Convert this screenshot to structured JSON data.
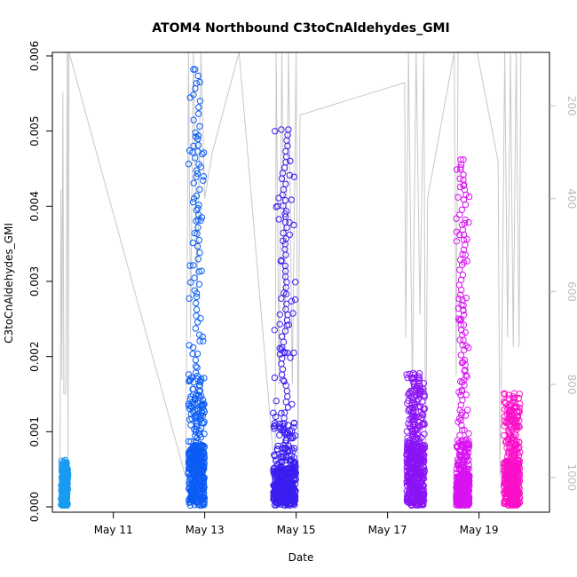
{
  "chart_data": {
    "type": "scatter",
    "title": "ATOM4 Northbound C3toCnAldehydes_GMI",
    "xlabel": "Date",
    "ylabel": "C3toCnAldehydes_GMI",
    "y2label": "",
    "xlim": [
      "2018-05-09T16:00",
      "2018-05-20T13:00"
    ],
    "ylim": [
      0,
      0.006
    ],
    "y2lim_reversed": [
      85,
      1075
    ],
    "x_ticks": [
      {
        "date": "2018-05-11",
        "label": "May 11"
      },
      {
        "date": "2018-05-13",
        "label": "May 13"
      },
      {
        "date": "2018-05-15",
        "label": "May 15"
      },
      {
        "date": "2018-05-17",
        "label": "May 17"
      },
      {
        "date": "2018-05-19",
        "label": "May 19"
      }
    ],
    "y_ticks": [
      "0.000",
      "0.001",
      "0.002",
      "0.003",
      "0.004",
      "0.005",
      "0.006"
    ],
    "y2_ticks": [
      "200",
      "400",
      "600",
      "800",
      "1000"
    ],
    "grid": false,
    "legend": "none",
    "series": [
      {
        "flight_date": "2018-05-09",
        "start": "2018-05-09T21:00",
        "end": "2018-05-09T23:45",
        "color": "#1a9bf0",
        "y_min": 2e-05,
        "y_max": 0.00062,
        "typical": 0.00025
      },
      {
        "flight_date": "2018-05-12",
        "start": "2018-05-12T15:30",
        "end": "2018-05-12T23:55",
        "color": "#0b5cf5",
        "y_min": 2e-05,
        "y_max": 0.00582,
        "typical": 0.0008
      },
      {
        "flight_date": "2018-05-14",
        "start": "2018-05-14T12:00",
        "end": "2018-05-14T23:50",
        "color": "#3a1ef0",
        "y_min": 2e-05,
        "y_max": 0.00502,
        "typical": 0.0005
      },
      {
        "flight_date": "2018-05-17",
        "start": "2018-05-17T10:00",
        "end": "2018-05-17T19:30",
        "color": "#8a14f5",
        "y_min": 2e-05,
        "y_max": 0.00176,
        "typical": 0.0008
      },
      {
        "flight_date": "2018-05-18",
        "start": "2018-05-18T12:00",
        "end": "2018-05-18T19:00",
        "color": "#d813f0",
        "y_min": 2e-05,
        "y_max": 0.00462,
        "typical": 0.0004
      },
      {
        "flight_date": "2018-05-19",
        "start": "2018-05-19T13:00",
        "end": "2018-05-19T21:30",
        "color": "#fb10c8",
        "y_min": 2e-05,
        "y_max": 0.00151,
        "typical": 0.0006
      }
    ],
    "pressure_trace": {
      "color": "#c8c8c8",
      "points": [
        [
          "2018-05-09T20:00",
          1000
        ],
        [
          "2018-05-09T20:30",
          380
        ],
        [
          "2018-05-09T21:00",
          790
        ],
        [
          "2018-05-09T21:30",
          170
        ],
        [
          "2018-05-09T22:00",
          820
        ],
        [
          "2018-05-09T23:00",
          820
        ],
        [
          "2018-05-09T23:30",
          400
        ],
        [
          "2018-05-09T23:50",
          85
        ],
        [
          "2018-05-10T00:00",
          85
        ],
        [
          "2018-05-10T00:10",
          1000
        ],
        [
          "2018-05-10T00:30",
          500
        ],
        [
          "2018-05-10T00:45",
          85
        ],
        [
          "2018-05-12T14:00",
          1000
        ],
        [
          "2018-05-12T14:30",
          700
        ],
        [
          "2018-05-12T15:30",
          85
        ],
        [
          "2018-05-12T16:30",
          700
        ],
        [
          "2018-05-12T18:00",
          85
        ],
        [
          "2018-05-12T20:00",
          600
        ],
        [
          "2018-05-12T22:00",
          85
        ],
        [
          "2018-05-13T00:00",
          400
        ],
        [
          "2018-05-13T04:00",
          300
        ],
        [
          "2018-05-13T18:00",
          85
        ],
        [
          "2018-05-14T13:00",
          1000
        ],
        [
          "2018-05-14T13:30",
          85
        ],
        [
          "2018-05-14T15:00",
          800
        ],
        [
          "2018-05-14T16:30",
          85
        ],
        [
          "2018-05-14T18:00",
          700
        ],
        [
          "2018-05-14T20:00",
          85
        ],
        [
          "2018-05-14T22:00",
          800
        ],
        [
          "2018-05-15T00:00",
          85
        ],
        [
          "2018-05-15T01:00",
          1000
        ],
        [
          "2018-05-15T02:00",
          220
        ],
        [
          "2018-05-17T09:00",
          150
        ],
        [
          "2018-05-17T09:30",
          700
        ],
        [
          "2018-05-17T11:00",
          85
        ],
        [
          "2018-05-17T13:00",
          800
        ],
        [
          "2018-05-17T15:00",
          85
        ],
        [
          "2018-05-17T17:00",
          650
        ],
        [
          "2018-05-17T19:00",
          85
        ],
        [
          "2018-05-17T20:00",
          1000
        ],
        [
          "2018-05-17T21:00",
          400
        ],
        [
          "2018-05-18T11:00",
          85
        ],
        [
          "2018-05-18T12:00",
          780
        ],
        [
          "2018-05-18T13:00",
          85
        ],
        [
          "2018-05-18T17:00",
          85
        ],
        [
          "2018-05-18T19:00",
          85
        ],
        [
          "2018-05-18T23:00",
          85
        ],
        [
          "2018-05-19T10:00",
          320
        ],
        [
          "2018-05-19T11:00",
          1000
        ],
        [
          "2018-05-19T12:00",
          700
        ],
        [
          "2018-05-19T13:30",
          85
        ],
        [
          "2018-05-19T15:00",
          700
        ],
        [
          "2018-05-19T16:30",
          85
        ],
        [
          "2018-05-19T18:00",
          720
        ],
        [
          "2018-05-19T19:30",
          85
        ],
        [
          "2018-05-19T21:00",
          720
        ],
        [
          "2018-05-19T22:00",
          85
        ]
      ]
    }
  }
}
